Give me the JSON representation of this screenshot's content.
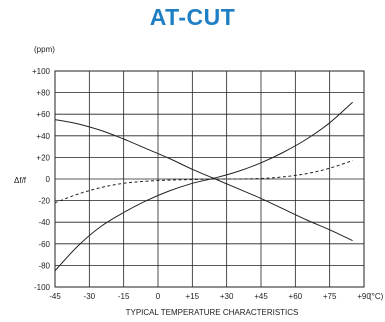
{
  "chart_data": {
    "type": "line",
    "title": "AT-CUT",
    "ylabel": "Δf/f",
    "yunit": "(ppm)",
    "xunit": "(°C)",
    "xlabel": "TYPICAL TEMPERATURE CHARACTERISTICS",
    "x_tick_labels": [
      "-45",
      "-30",
      "-15",
      "0",
      "+15",
      "+30",
      "+45",
      "+60",
      "+75",
      "+90"
    ],
    "y_tick_labels": [
      "+100",
      "+80",
      "+60",
      "+40",
      "+20",
      "0",
      "-20",
      "-40",
      "-60",
      "-80",
      "-100"
    ],
    "xlim": [
      -45,
      90
    ],
    "ylim": [
      -100,
      100
    ],
    "grid": true,
    "colors": {
      "title": "#1f7fc4",
      "lines": "#222222",
      "grid": "#222222"
    },
    "series": [
      {
        "style": "solid",
        "x": [
          -45,
          -35,
          -25,
          -15,
          -5,
          5,
          15,
          25,
          35,
          45,
          55,
          65,
          75,
          85
        ],
        "values": [
          -85,
          -62,
          -44,
          -31,
          -20,
          -11,
          -4,
          1,
          7,
          15,
          25,
          37,
          52,
          71
        ]
      },
      {
        "style": "solid",
        "x": [
          -45,
          -35,
          -25,
          -15,
          -5,
          5,
          15,
          25,
          35,
          45,
          55,
          65,
          75,
          85
        ],
        "values": [
          55,
          51,
          45,
          37,
          28,
          19,
          9,
          0,
          -9,
          -18,
          -28,
          -38,
          -47,
          -57
        ]
      },
      {
        "style": "dashed",
        "x": [
          -45,
          -35,
          -25,
          -15,
          -5,
          5,
          15,
          25,
          35,
          45,
          55,
          65,
          75,
          85
        ],
        "values": [
          -22,
          -14,
          -8,
          -4,
          -2,
          -1,
          -0.5,
          0,
          0,
          0.5,
          2,
          5,
          10,
          17
        ]
      }
    ]
  }
}
